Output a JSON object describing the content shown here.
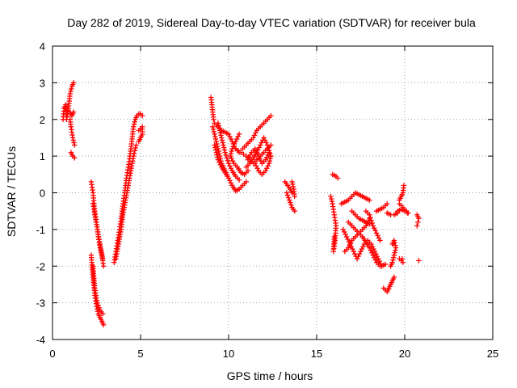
{
  "chart_data": {
    "type": "scatter",
    "title": "Day 282 of 2019, Sidereal Day-to-day VTEC variation (SDTVAR) for receiver bula",
    "xlabel": "GPS time / hours",
    "ylabel": "SDTVAR / TECUs",
    "xlim": [
      0,
      25
    ],
    "ylim": [
      -4,
      4
    ],
    "xticks": [
      0,
      5,
      10,
      15,
      20,
      25
    ],
    "yticks": [
      -4,
      -3,
      -2,
      -1,
      0,
      1,
      2,
      3,
      4
    ],
    "grid": true,
    "marker": "plus",
    "color": "#ff0000",
    "tracks": [
      [
        [
          0.6,
          2.0
        ],
        [
          0.65,
          2.3
        ],
        [
          0.75,
          2.4
        ],
        [
          0.8,
          2.0
        ],
        [
          0.9,
          2.3
        ],
        [
          1.0,
          2.7
        ],
        [
          1.1,
          2.9
        ],
        [
          1.2,
          3.0
        ]
      ],
      [
        [
          0.85,
          2.25
        ],
        [
          1.0,
          2.2
        ],
        [
          1.1,
          2.1
        ],
        [
          1.2,
          2.2
        ]
      ],
      [
        [
          1.0,
          2.0
        ],
        [
          1.05,
          1.8
        ],
        [
          1.15,
          1.5
        ],
        [
          1.25,
          1.3
        ]
      ],
      [
        [
          1.05,
          1.1
        ],
        [
          1.15,
          1.0
        ],
        [
          1.25,
          0.95
        ]
      ],
      [
        [
          2.2,
          0.3
        ],
        [
          2.3,
          0.0
        ],
        [
          2.4,
          -0.5
        ],
        [
          2.5,
          -0.8
        ],
        [
          2.6,
          -1.2
        ],
        [
          2.7,
          -1.5
        ],
        [
          2.8,
          -1.7
        ],
        [
          2.9,
          -2.0
        ]
      ],
      [
        [
          2.3,
          -0.3
        ],
        [
          2.4,
          -0.6
        ],
        [
          2.55,
          -1.0
        ],
        [
          2.7,
          -1.4
        ],
        [
          2.85,
          -1.8
        ]
      ],
      [
        [
          2.2,
          -1.7
        ],
        [
          2.3,
          -2.3
        ],
        [
          2.4,
          -2.8
        ],
        [
          2.5,
          -3.1
        ],
        [
          2.6,
          -3.3
        ],
        [
          2.7,
          -3.4
        ],
        [
          2.8,
          -3.5
        ],
        [
          2.9,
          -3.6
        ]
      ],
      [
        [
          2.3,
          -2.0
        ],
        [
          2.4,
          -2.6
        ],
        [
          2.55,
          -3.0
        ],
        [
          2.7,
          -3.2
        ],
        [
          2.85,
          -3.3
        ]
      ],
      [
        [
          3.5,
          -1.9
        ],
        [
          3.6,
          -1.6
        ],
        [
          3.7,
          -1.3
        ],
        [
          3.8,
          -1.0
        ],
        [
          3.9,
          -0.7
        ],
        [
          4.0,
          -0.3
        ],
        [
          4.1,
          0.0
        ],
        [
          4.2,
          0.4
        ],
        [
          4.3,
          0.7
        ],
        [
          4.4,
          1.0
        ],
        [
          4.5,
          1.4
        ],
        [
          4.6,
          1.8
        ],
        [
          4.7,
          2.0
        ],
        [
          4.8,
          2.1
        ],
        [
          4.9,
          2.15
        ],
        [
          5.0,
          2.15
        ],
        [
          5.1,
          2.1
        ]
      ],
      [
        [
          3.6,
          -1.8
        ],
        [
          3.75,
          -1.4
        ],
        [
          3.9,
          -1.0
        ],
        [
          4.0,
          -0.6
        ],
        [
          4.15,
          -0.2
        ],
        [
          4.3,
          0.2
        ],
        [
          4.45,
          0.6
        ],
        [
          4.6,
          1.0
        ],
        [
          4.75,
          1.3
        ]
      ],
      [
        [
          4.9,
          1.4
        ],
        [
          5.0,
          1.5
        ],
        [
          5.1,
          1.6
        ],
        [
          5.1,
          1.8
        ],
        [
          4.9,
          1.7
        ]
      ],
      [
        [
          9.0,
          2.6
        ],
        [
          9.05,
          2.4
        ],
        [
          9.1,
          2.2
        ],
        [
          9.15,
          2.0
        ],
        [
          9.2,
          1.9
        ],
        [
          9.4,
          1.8
        ],
        [
          9.6,
          1.7
        ],
        [
          9.8,
          1.65
        ],
        [
          10.0,
          1.6
        ],
        [
          10.2,
          1.4
        ],
        [
          10.4,
          1.2
        ],
        [
          10.6,
          1.1
        ]
      ],
      [
        [
          9.1,
          1.8
        ],
        [
          9.2,
          1.6
        ],
        [
          9.3,
          1.4
        ],
        [
          9.4,
          1.2
        ],
        [
          9.5,
          1.0
        ],
        [
          9.6,
          0.8
        ],
        [
          9.7,
          0.7
        ],
        [
          9.8,
          0.6
        ],
        [
          9.9,
          0.5
        ]
      ],
      [
        [
          9.2,
          1.3
        ],
        [
          9.4,
          0.9
        ],
        [
          9.6,
          0.7
        ],
        [
          9.8,
          0.55
        ],
        [
          10.0,
          0.4
        ],
        [
          10.2,
          0.2
        ],
        [
          10.4,
          0.05
        ],
        [
          10.6,
          0.1
        ],
        [
          10.8,
          0.2
        ],
        [
          11.0,
          0.3
        ]
      ],
      [
        [
          9.4,
          1.9
        ],
        [
          9.6,
          1.5
        ],
        [
          9.8,
          1.1
        ],
        [
          10.0,
          0.8
        ],
        [
          10.2,
          0.6
        ],
        [
          10.4,
          0.45
        ],
        [
          10.6,
          0.35
        ]
      ],
      [
        [
          10.6,
          1.6
        ],
        [
          10.4,
          1.4
        ],
        [
          10.2,
          1.2
        ],
        [
          10.1,
          1.0
        ],
        [
          10.3,
          0.8
        ],
        [
          10.5,
          0.7
        ],
        [
          10.7,
          0.55
        ],
        [
          10.9,
          0.5
        ],
        [
          11.1,
          0.6
        ]
      ],
      [
        [
          10.4,
          1.2
        ],
        [
          10.7,
          1.1
        ],
        [
          11.0,
          1.0
        ],
        [
          11.2,
          0.9
        ],
        [
          11.4,
          0.8
        ],
        [
          11.6,
          0.9
        ],
        [
          11.8,
          1.0
        ],
        [
          12.0,
          1.1
        ],
        [
          12.2,
          1.2
        ],
        [
          12.4,
          1.3
        ]
      ],
      [
        [
          10.8,
          1.2
        ],
        [
          11.0,
          1.3
        ],
        [
          11.2,
          1.4
        ],
        [
          11.4,
          1.5
        ],
        [
          11.6,
          1.7
        ],
        [
          11.8,
          1.8
        ],
        [
          12.0,
          1.9
        ],
        [
          12.2,
          2.0
        ],
        [
          12.4,
          2.1
        ]
      ],
      [
        [
          11.0,
          0.7
        ],
        [
          11.2,
          0.8
        ],
        [
          11.4,
          0.95
        ],
        [
          11.6,
          1.1
        ],
        [
          11.8,
          1.3
        ],
        [
          12.0,
          1.5
        ],
        [
          12.2,
          1.3
        ],
        [
          12.4,
          1.0
        ]
      ],
      [
        [
          11.1,
          0.9
        ],
        [
          11.3,
          1.1
        ],
        [
          11.5,
          1.2
        ],
        [
          11.7,
          1.0
        ],
        [
          11.9,
          0.8
        ],
        [
          12.1,
          0.9
        ],
        [
          12.3,
          1.1
        ]
      ],
      [
        [
          11.5,
          0.8
        ],
        [
          11.7,
          0.6
        ],
        [
          11.9,
          0.5
        ],
        [
          12.1,
          0.6
        ],
        [
          12.3,
          0.8
        ],
        [
          12.4,
          1.0
        ]
      ],
      [
        [
          13.2,
          0.3
        ],
        [
          13.35,
          0.2
        ],
        [
          13.5,
          0.1
        ],
        [
          13.6,
          0.0
        ]
      ],
      [
        [
          13.3,
          0.0
        ],
        [
          13.45,
          -0.2
        ],
        [
          13.6,
          -0.4
        ],
        [
          13.75,
          -0.5
        ]
      ],
      [
        [
          13.6,
          0.3
        ],
        [
          13.7,
          0.1
        ],
        [
          13.75,
          -0.1
        ]
      ],
      [
        [
          15.9,
          0.5
        ],
        [
          16.1,
          0.45
        ],
        [
          16.2,
          0.4
        ]
      ],
      [
        [
          15.8,
          -0.1
        ],
        [
          15.9,
          -0.3
        ],
        [
          16.0,
          -0.6
        ],
        [
          16.1,
          -0.9
        ],
        [
          16.05,
          -1.3
        ],
        [
          15.95,
          -1.6
        ],
        [
          16.0,
          -1.2
        ]
      ],
      [
        [
          16.4,
          -0.3
        ],
        [
          16.6,
          -0.25
        ],
        [
          16.8,
          -0.2
        ],
        [
          17.0,
          -0.1
        ],
        [
          17.2,
          0.0
        ],
        [
          17.4,
          -0.05
        ],
        [
          17.6,
          -0.1
        ],
        [
          17.8,
          -0.15
        ],
        [
          18.0,
          -0.2
        ]
      ],
      [
        [
          16.5,
          -1.0
        ],
        [
          16.7,
          -1.2
        ],
        [
          16.9,
          -1.4
        ],
        [
          17.1,
          -1.6
        ],
        [
          17.3,
          -1.8
        ],
        [
          17.5,
          -1.6
        ],
        [
          17.7,
          -1.4
        ],
        [
          17.9,
          -1.3
        ],
        [
          18.1,
          -1.4
        ],
        [
          18.3,
          -1.6
        ],
        [
          18.5,
          -1.8
        ],
        [
          18.7,
          -2.0
        ],
        [
          18.9,
          -1.95
        ]
      ],
      [
        [
          16.6,
          -1.6
        ],
        [
          16.8,
          -1.5
        ],
        [
          17.0,
          -1.3
        ],
        [
          17.2,
          -1.2
        ],
        [
          17.4,
          -1.1
        ],
        [
          17.6,
          -1.0
        ],
        [
          17.8,
          -0.9
        ],
        [
          18.0,
          -0.7
        ]
      ],
      [
        [
          16.8,
          -0.8
        ],
        [
          17.0,
          -0.9
        ],
        [
          17.2,
          -1.0
        ],
        [
          17.4,
          -1.1
        ],
        [
          17.6,
          -1.2
        ],
        [
          17.8,
          -1.35
        ],
        [
          18.0,
          -1.5
        ],
        [
          18.2,
          -1.7
        ],
        [
          18.4,
          -1.9
        ],
        [
          18.6,
          -2.0
        ]
      ],
      [
        [
          17.0,
          -0.5
        ],
        [
          17.2,
          -0.6
        ],
        [
          17.4,
          -0.7
        ],
        [
          17.6,
          -0.75
        ],
        [
          17.8,
          -0.8
        ],
        [
          18.0,
          -0.85
        ]
      ],
      [
        [
          17.8,
          -0.5
        ],
        [
          18.0,
          -0.6
        ],
        [
          18.2,
          -0.9
        ],
        [
          18.4,
          -1.1
        ],
        [
          18.6,
          -1.3
        ]
      ],
      [
        [
          18.4,
          -0.5
        ],
        [
          18.6,
          -0.45
        ],
        [
          18.8,
          -0.4
        ],
        [
          19.0,
          -0.3
        ]
      ],
      [
        [
          19.0,
          -0.55
        ],
        [
          19.2,
          -0.6
        ],
        [
          19.4,
          -0.6
        ],
        [
          19.6,
          -0.55
        ]
      ],
      [
        [
          19.7,
          -0.3
        ],
        [
          19.8,
          -0.35
        ],
        [
          19.9,
          -0.4
        ],
        [
          20.0,
          -0.45
        ],
        [
          20.1,
          -0.5
        ],
        [
          20.2,
          -0.55
        ]
      ],
      [
        [
          19.7,
          -0.2
        ],
        [
          19.8,
          -0.1
        ],
        [
          19.9,
          0.0
        ],
        [
          19.95,
          0.2
        ]
      ],
      [
        [
          19.3,
          -1.4
        ],
        [
          19.4,
          -1.3
        ],
        [
          19.5,
          -1.5
        ],
        [
          19.4,
          -1.7
        ],
        [
          19.3,
          -1.9
        ],
        [
          19.2,
          -2.0
        ]
      ],
      [
        [
          19.7,
          -1.8
        ],
        [
          19.8,
          -1.85
        ],
        [
          19.9,
          -1.9
        ],
        [
          19.85,
          -1.8
        ]
      ],
      [
        [
          18.8,
          -2.6
        ],
        [
          18.9,
          -2.65
        ],
        [
          19.0,
          -2.7
        ],
        [
          19.1,
          -2.6
        ],
        [
          19.2,
          -2.5
        ],
        [
          19.3,
          -2.4
        ],
        [
          19.4,
          -2.3
        ]
      ],
      [
        [
          19.6,
          -0.5
        ],
        [
          19.8,
          -0.45
        ],
        [
          20.0,
          -0.5
        ],
        [
          20.15,
          -0.55
        ]
      ],
      [
        [
          20.7,
          -0.6
        ],
        [
          20.8,
          -0.7
        ],
        [
          20.75,
          -0.8
        ],
        [
          20.7,
          -0.9
        ]
      ],
      [
        [
          20.8,
          -1.85
        ]
      ]
    ]
  }
}
